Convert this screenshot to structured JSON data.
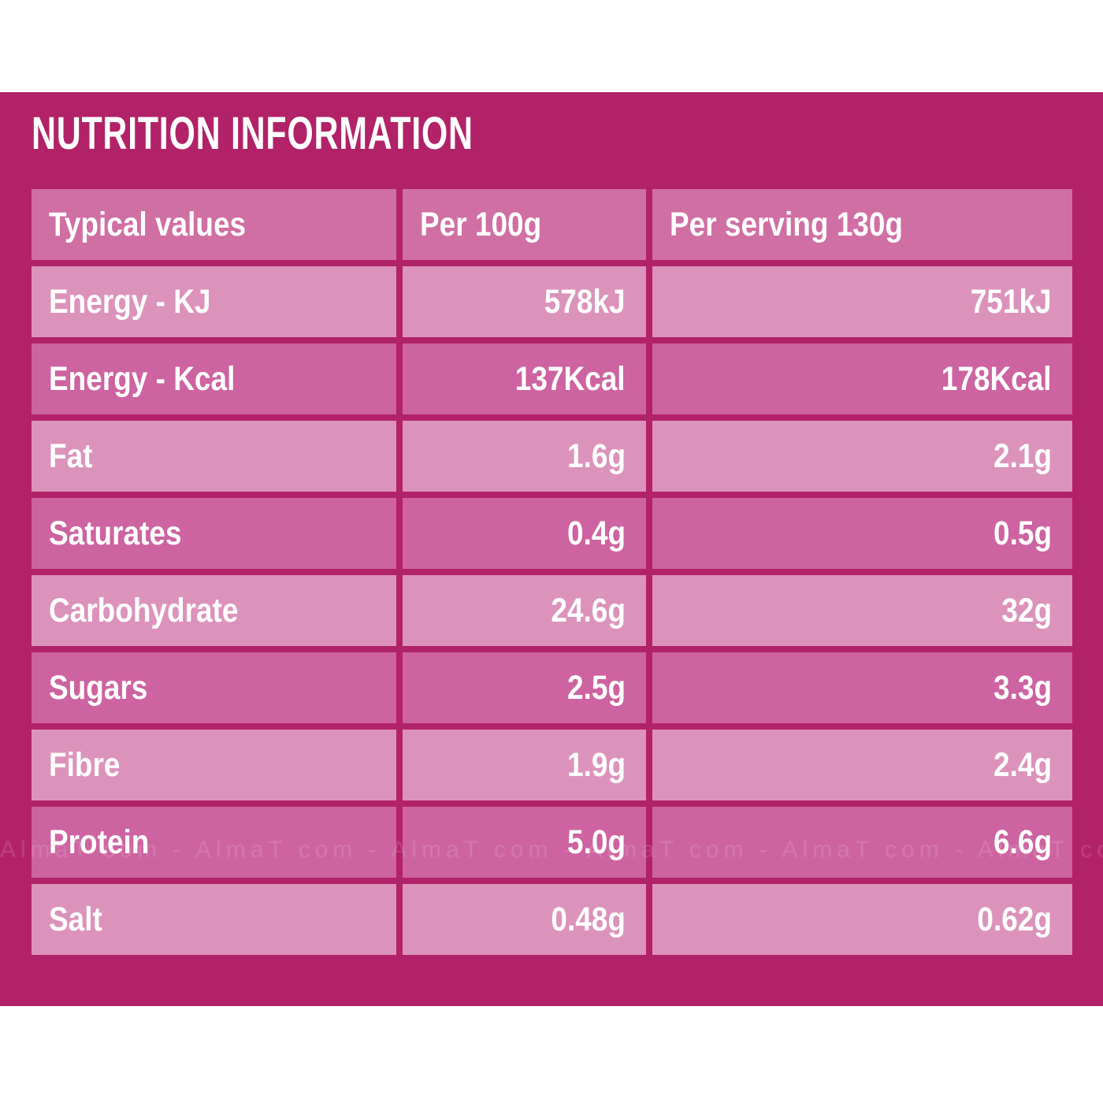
{
  "page": {
    "title": "NUTRITION INFORMATION",
    "watermark_text": "AlmaT com - AlmaT com - AlmaT com - AlmaT com - AlmaT com - AlmaT com - AlmaT com -",
    "colors": {
      "page_bg": "#ffffff",
      "panel_bg": "#b22268",
      "header_cell_bg": "#d06fa4",
      "row_light_bg": "#dc93bb",
      "row_dark_bg": "#cd63a0",
      "text": "#ffffff"
    }
  },
  "table": {
    "headers": [
      "Typical values",
      "Per 100g",
      "Per serving 130g"
    ],
    "rows": [
      {
        "label": "Energy - KJ",
        "per_100g": "578kJ",
        "per_serving": "751kJ"
      },
      {
        "label": "Energy - Kcal",
        "per_100g": "137Kcal",
        "per_serving": "178Kcal"
      },
      {
        "label": "Fat",
        "per_100g": "1.6g",
        "per_serving": "2.1g"
      },
      {
        "label": "Saturates",
        "per_100g": "0.4g",
        "per_serving": "0.5g"
      },
      {
        "label": "Carbohydrate",
        "per_100g": "24.6g",
        "per_serving": "32g"
      },
      {
        "label": "Sugars",
        "per_100g": "2.5g",
        "per_serving": "3.3g"
      },
      {
        "label": "Fibre",
        "per_100g": "1.9g",
        "per_serving": "2.4g"
      },
      {
        "label": "Protein",
        "per_100g": "5.0g",
        "per_serving": "6.6g"
      },
      {
        "label": "Salt",
        "per_100g": "0.48g",
        "per_serving": "0.62g"
      }
    ]
  }
}
